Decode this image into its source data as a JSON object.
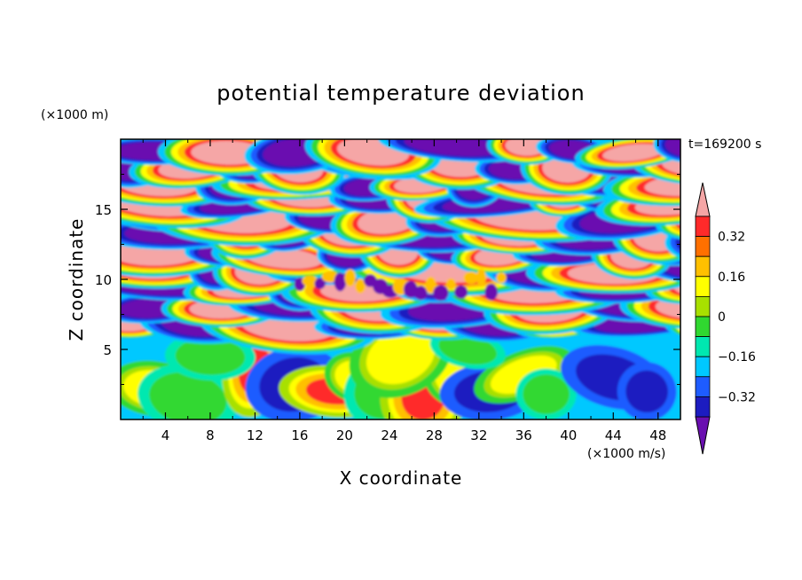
{
  "chart_data": {
    "type": "heatmap",
    "title": "potential temperature deviation",
    "xlabel": "X coordinate",
    "ylabel": "Z coordinate",
    "x_unit": "(×1000 m/s)",
    "y_unit": "(×1000 m)",
    "time_label": "t=169200 s",
    "xlim": [
      0,
      50
    ],
    "ylim": [
      0,
      20
    ],
    "x_ticks": [
      4,
      8,
      12,
      16,
      20,
      24,
      28,
      32,
      36,
      40,
      44,
      48
    ],
    "y_ticks": [
      5,
      10,
      15
    ],
    "grid": false,
    "legend": "right",
    "colorbar": {
      "levels": [
        -0.4,
        -0.32,
        -0.24,
        -0.16,
        -0.08,
        0,
        0.08,
        0.16,
        0.24,
        0.32,
        0.4
      ],
      "tick_labels": [
        "0.32",
        "0.16",
        "0",
        "−0.16",
        "−0.32"
      ],
      "tick_values": [
        0.32,
        0.16,
        0,
        -0.16,
        -0.32
      ],
      "colors": [
        "#6a0fb0",
        "#1c1cc0",
        "#1e5cff",
        "#00c8ff",
        "#00e8b0",
        "#30d830",
        "#a8e000",
        "#ffff00",
        "#ffc000",
        "#ff7000",
        "#ff2a2a",
        "#f5a6a6"
      ],
      "extend": "both"
    },
    "field_note_values": {
      "upper_layer_z_range": [
        6,
        20
      ],
      "lower_layer_z_range": [
        0,
        6
      ]
    }
  }
}
